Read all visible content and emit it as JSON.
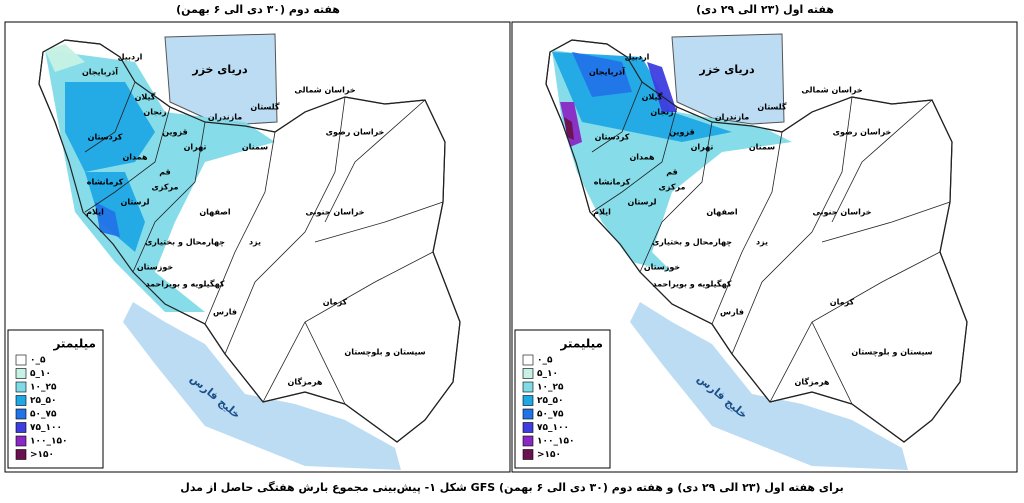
{
  "panels": [
    {
      "title": "هفته دوم (۳۰ دی الی ۶ بهمن)"
    },
    {
      "title": "هفته اول (۲۳ الی ۲۹ دی)"
    }
  ],
  "legend": {
    "title": "میلیمتر",
    "items": [
      {
        "label": "۰_۵",
        "color": "#ffffff"
      },
      {
        "label": "۵_۱۰",
        "color": "#c6f1e4"
      },
      {
        "label": "۱۰_۲۵",
        "color": "#7fdbe8"
      },
      {
        "label": "۲۵_۵۰",
        "color": "#1fa8e6"
      },
      {
        "label": "۵۰_۷۵",
        "color": "#2273e8"
      },
      {
        "label": "۷۵_۱۰۰",
        "color": "#3d3de0"
      },
      {
        "label": "۱۰۰_۱۵۰",
        "color": "#8a28c4"
      },
      {
        "label": ">۱۵۰",
        "color": "#6a1250"
      }
    ]
  },
  "seas": [
    "دریای خزر",
    "خلیج فارس"
  ],
  "provinces": [
    "اردبیل",
    "آذربایجان",
    "گیلان",
    "زنجان",
    "مازندران",
    "گلستان",
    "خراسان شمالی",
    "خراسان رضوی",
    "قزوین",
    "تهران",
    "سمنان",
    "کردستان",
    "همدان",
    "قم",
    "مرکزی",
    "کرمانشاه",
    "ایلام",
    "لرستان",
    "اصفهان",
    "خراسان جنوبی",
    "چهارمحال و بختیاری",
    "یزد",
    "خوزستان",
    "کهگیلویه و بویراحمد",
    "کرمان",
    "فارس",
    "سیستان و بلوچستان",
    "هرمزگان"
  ],
  "caption": "شکل ۱- پیش‌بینی مجموع بارش هفتگی حاصل از مدل GFS برای هفته اول (۲۳ الی ۲۹ دی) و هفته دوم (۳۰ دی الی ۶ بهمن)"
}
